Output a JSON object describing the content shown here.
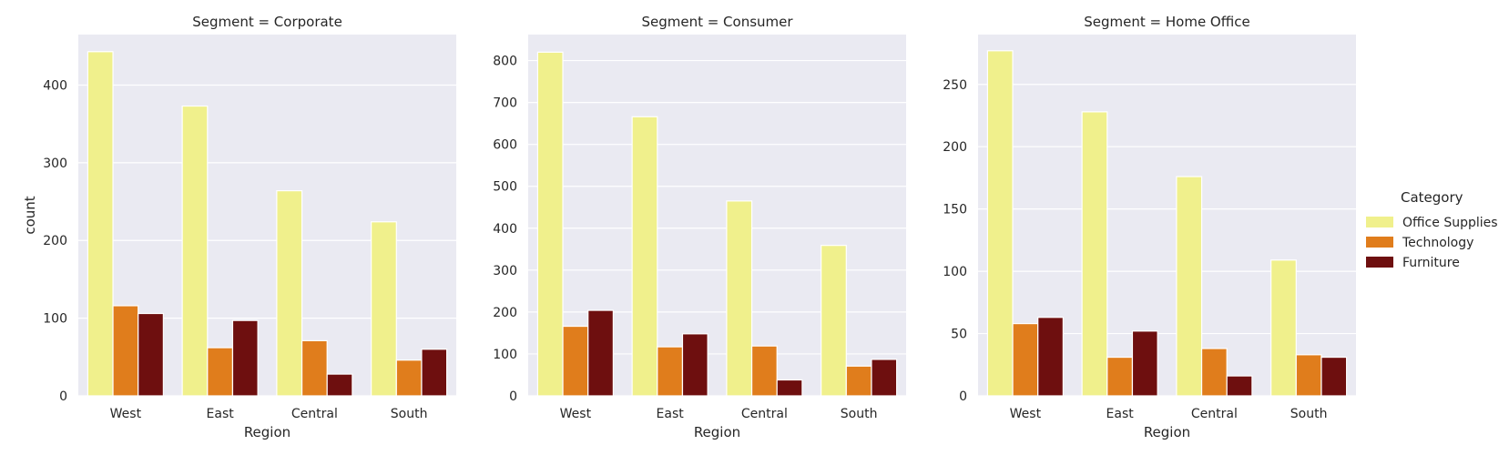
{
  "legend": {
    "title": "Category",
    "items": [
      {
        "label": "Office Supplies",
        "color": "#f0f08c"
      },
      {
        "label": "Technology",
        "color": "#e07d1c"
      },
      {
        "label": "Furniture",
        "color": "#6e0f0f"
      }
    ]
  },
  "chart_data": [
    {
      "type": "bar",
      "title": "Segment = Corporate",
      "xlabel": "Region",
      "ylabel": "count",
      "categories": [
        "West",
        "East",
        "Central",
        "South"
      ],
      "yticks": [
        0,
        100,
        200,
        300,
        400
      ],
      "ylim": [
        0,
        465
      ],
      "grid": true,
      "series": [
        {
          "name": "Office Supplies",
          "values": [
            443,
            373,
            264,
            224
          ]
        },
        {
          "name": "Technology",
          "values": [
            116,
            62,
            71,
            46
          ]
        },
        {
          "name": "Furniture",
          "values": [
            106,
            97,
            28,
            60
          ]
        }
      ]
    },
    {
      "type": "bar",
      "title": "Segment = Consumer",
      "xlabel": "Region",
      "ylabel": "",
      "categories": [
        "West",
        "East",
        "Central",
        "South"
      ],
      "yticks": [
        0,
        100,
        200,
        300,
        400,
        500,
        600,
        700,
        800
      ],
      "ylim": [
        0,
        862
      ],
      "grid": true,
      "series": [
        {
          "name": "Office Supplies",
          "values": [
            820,
            666,
            465,
            359
          ]
        },
        {
          "name": "Technology",
          "values": [
            166,
            117,
            119,
            71
          ]
        },
        {
          "name": "Furniture",
          "values": [
            204,
            148,
            38,
            87
          ]
        }
      ]
    },
    {
      "type": "bar",
      "title": "Segment = Home Office",
      "xlabel": "Region",
      "ylabel": "",
      "categories": [
        "West",
        "East",
        "Central",
        "South"
      ],
      "yticks": [
        0,
        50,
        100,
        150,
        200,
        250
      ],
      "ylim": [
        0,
        290
      ],
      "grid": true,
      "series": [
        {
          "name": "Office Supplies",
          "values": [
            277,
            228,
            176,
            109
          ]
        },
        {
          "name": "Technology",
          "values": [
            58,
            31,
            38,
            33
          ]
        },
        {
          "name": "Furniture",
          "values": [
            63,
            52,
            16,
            31
          ]
        }
      ]
    }
  ]
}
